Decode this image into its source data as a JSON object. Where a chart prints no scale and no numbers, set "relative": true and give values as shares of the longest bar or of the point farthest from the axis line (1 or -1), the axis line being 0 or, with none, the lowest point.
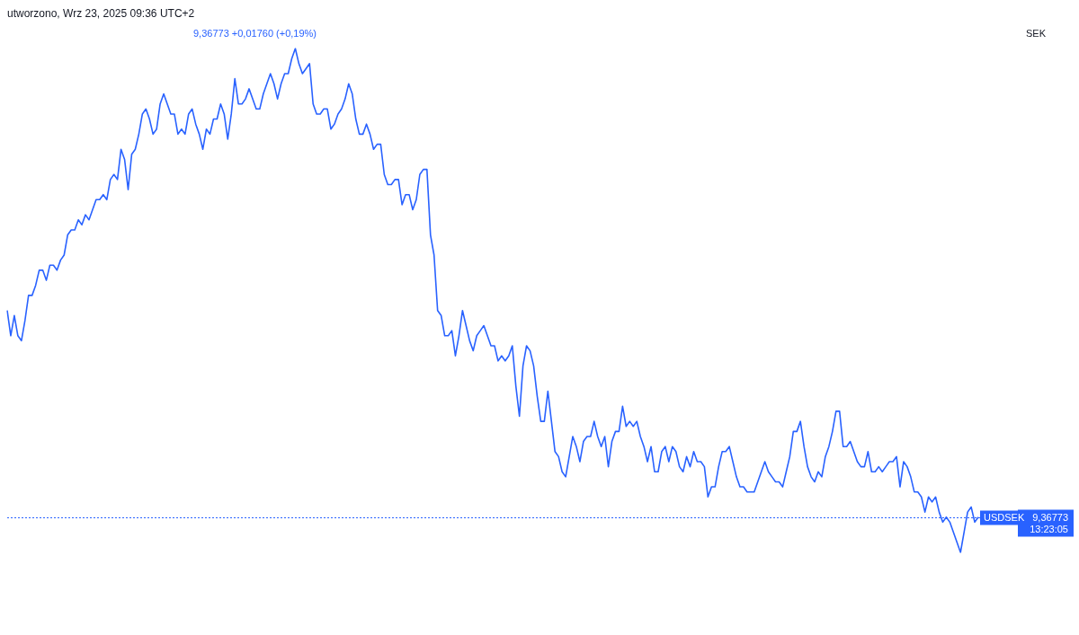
{
  "chart_data": {
    "type": "line",
    "title": "utworzono, Wrz 23, 2025 09:36 UTC+2",
    "annotations": [
      "9,36773 +0,01760 (+0,19%)",
      "SEK",
      "USDSEK",
      "13:23:05"
    ],
    "relative": true,
    "marker": "none",
    "line_style": "solid",
    "ref_lines": [
      {
        "axis": "y",
        "value": 0.07,
        "label": "9,36773",
        "color": "#2962ff",
        "line_style": "dotted"
      }
    ],
    "categories": [
      null,
      null,
      null,
      null,
      null,
      null,
      null,
      null,
      null,
      null,
      null,
      null,
      null,
      null,
      null,
      null,
      null,
      null,
      null,
      null,
      null,
      null,
      null,
      null,
      null,
      null,
      null,
      null,
      null,
      null,
      null,
      null,
      null,
      null,
      null,
      null,
      null,
      null,
      null,
      null,
      null,
      null,
      null,
      null,
      null,
      null,
      null,
      null,
      null,
      null,
      null,
      null,
      null,
      null,
      null,
      null,
      null,
      null,
      null,
      null,
      null,
      null,
      null,
      null,
      null,
      null,
      null,
      null,
      null,
      null,
      null,
      null,
      null,
      null,
      null,
      null,
      null,
      null,
      null,
      null,
      null,
      null,
      null,
      null,
      null,
      null,
      null,
      null,
      null,
      null,
      null,
      null,
      null,
      null,
      null,
      null,
      null,
      null,
      null,
      null,
      null,
      null,
      null,
      null,
      null,
      null,
      null,
      null,
      null,
      null,
      null,
      null,
      null,
      null,
      null,
      null,
      null,
      null,
      null,
      null,
      null,
      null,
      null,
      null,
      null,
      null,
      null,
      null,
      null,
      null,
      null,
      null,
      null,
      null,
      null,
      null,
      null,
      null,
      null,
      null,
      null,
      null,
      null,
      null,
      null,
      null,
      null,
      null,
      null,
      null,
      null,
      null,
      null,
      null,
      null,
      null,
      null,
      null,
      null,
      null,
      null,
      null,
      null,
      null,
      null,
      null,
      null,
      null,
      null,
      null,
      null,
      null,
      null,
      null,
      null,
      null,
      null,
      null,
      null,
      null,
      null,
      null,
      null,
      null,
      null,
      null,
      null,
      null,
      null,
      null,
      null,
      null,
      null,
      null,
      null,
      null,
      null,
      null,
      null,
      null,
      null,
      null,
      null,
      null,
      null,
      null,
      null,
      null,
      null,
      null,
      null,
      null,
      null,
      null,
      null,
      null,
      null,
      null,
      null,
      null,
      null,
      null,
      null,
      null,
      null,
      null,
      null,
      null,
      null,
      null,
      null,
      null,
      null,
      null,
      null,
      null,
      null,
      null,
      null,
      null,
      null,
      null,
      null,
      null,
      null,
      null,
      null,
      null,
      null,
      null,
      null,
      null,
      null,
      null,
      null,
      null,
      null,
      null,
      null,
      null,
      null,
      null,
      null,
      null,
      null,
      null,
      null,
      null,
      null,
      null,
      null,
      null,
      null,
      null
    ],
    "series": [
      {
        "color": "#2962ff",
        "values": [
          0.48,
          0.43,
          0.47,
          0.43,
          0.42,
          0.46,
          0.51,
          0.51,
          0.53,
          0.56,
          0.56,
          0.54,
          0.57,
          0.57,
          0.56,
          0.58,
          0.59,
          0.63,
          0.64,
          0.64,
          0.66,
          0.65,
          0.67,
          0.66,
          0.68,
          0.7,
          0.7,
          0.71,
          0.7,
          0.74,
          0.75,
          0.74,
          0.8,
          0.78,
          0.72,
          0.79,
          0.8,
          0.83,
          0.87,
          0.88,
          0.86,
          0.83,
          0.84,
          0.89,
          0.91,
          0.89,
          0.87,
          0.87,
          0.83,
          0.84,
          0.83,
          0.87,
          0.88,
          0.85,
          0.83,
          0.8,
          0.84,
          0.83,
          0.86,
          0.86,
          0.89,
          0.87,
          0.82,
          0.87,
          0.94,
          0.89,
          0.89,
          0.9,
          0.92,
          0.9,
          0.88,
          0.88,
          0.91,
          0.93,
          0.95,
          0.93,
          0.9,
          0.93,
          0.95,
          0.95,
          0.98,
          1,
          0.97,
          0.95,
          0.96,
          0.97,
          0.89,
          0.87,
          0.87,
          0.88,
          0.88,
          0.84,
          0.85,
          0.87,
          0.88,
          0.9,
          0.93,
          0.91,
          0.86,
          0.83,
          0.83,
          0.85,
          0.83,
          0.8,
          0.81,
          0.81,
          0.75,
          0.73,
          0.73,
          0.74,
          0.74,
          0.69,
          0.71,
          0.71,
          0.68,
          0.7,
          0.75,
          0.76,
          0.76,
          0.63,
          0.59,
          0.48,
          0.47,
          0.43,
          0.43,
          0.44,
          0.39,
          0.43,
          0.48,
          0.45,
          0.42,
          0.4,
          0.43,
          0.44,
          0.45,
          0.43,
          0.41,
          0.41,
          0.38,
          0.39,
          0.38,
          0.39,
          0.41,
          0.33,
          0.27,
          0.37,
          0.41,
          0.4,
          0.37,
          0.31,
          0.26,
          0.26,
          0.32,
          0.26,
          0.2,
          0.19,
          0.16,
          0.15,
          0.19,
          0.23,
          0.21,
          0.18,
          0.22,
          0.23,
          0.23,
          0.26,
          0.23,
          0.21,
          0.23,
          0.17,
          0.22,
          0.24,
          0.24,
          0.29,
          0.25,
          0.26,
          0.25,
          0.26,
          0.23,
          0.21,
          0.18,
          0.21,
          0.16,
          0.16,
          0.2,
          0.21,
          0.18,
          0.21,
          0.2,
          0.17,
          0.16,
          0.19,
          0.17,
          0.2,
          0.18,
          0.18,
          0.17,
          0.11,
          0.13,
          0.13,
          0.17,
          0.2,
          0.2,
          0.21,
          0.18,
          0.15,
          0.13,
          0.13,
          0.12,
          0.12,
          0.12,
          0.14,
          0.16,
          0.18,
          0.16,
          0.15,
          0.14,
          0.14,
          0.13,
          0.16,
          0.19,
          0.24,
          0.24,
          0.26,
          0.21,
          0.17,
          0.15,
          0.14,
          0.16,
          0.15,
          0.19,
          0.21,
          0.24,
          0.28,
          0.28,
          0.21,
          0.21,
          0.22,
          0.2,
          0.18,
          0.17,
          0.17,
          0.2,
          0.16,
          0.16,
          0.17,
          0.16,
          0.17,
          0.18,
          0.18,
          0.19,
          0.13,
          0.18,
          0.17,
          0.15,
          0.12,
          0.12,
          0.11,
          0.08,
          0.11,
          0.1,
          0.11,
          0.08,
          0.06,
          0.07,
          0.06,
          0.04,
          0.02,
          0,
          0.04,
          0.08,
          0.09,
          0.06,
          0.07
        ]
      }
    ]
  }
}
